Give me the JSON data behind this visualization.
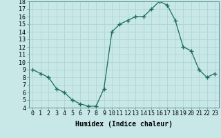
{
  "x": [
    0,
    1,
    2,
    3,
    4,
    5,
    6,
    7,
    8,
    9,
    10,
    11,
    12,
    13,
    14,
    15,
    16,
    17,
    18,
    19,
    20,
    21,
    22,
    23
  ],
  "y": [
    9.0,
    8.5,
    8.0,
    6.5,
    6.0,
    5.0,
    4.5,
    4.2,
    4.2,
    6.5,
    14.0,
    15.0,
    15.5,
    16.0,
    16.0,
    17.0,
    18.0,
    17.5,
    15.5,
    12.0,
    11.5,
    9.0,
    8.0,
    8.5
  ],
  "line_color": "#1a6b5a",
  "marker": "+",
  "marker_size": 4,
  "bg_color": "#c8e8e8",
  "grid_color": "#b0d4d4",
  "xlabel": "Humidex (Indice chaleur)",
  "xlim": [
    -0.5,
    23.5
  ],
  "ylim": [
    4,
    18
  ],
  "xticks": [
    0,
    1,
    2,
    3,
    4,
    5,
    6,
    7,
    8,
    9,
    10,
    11,
    12,
    13,
    14,
    15,
    16,
    17,
    18,
    19,
    20,
    21,
    22,
    23
  ],
  "yticks": [
    4,
    5,
    6,
    7,
    8,
    9,
    10,
    11,
    12,
    13,
    14,
    15,
    16,
    17,
    18
  ],
  "label_fontsize": 7,
  "tick_fontsize": 6
}
